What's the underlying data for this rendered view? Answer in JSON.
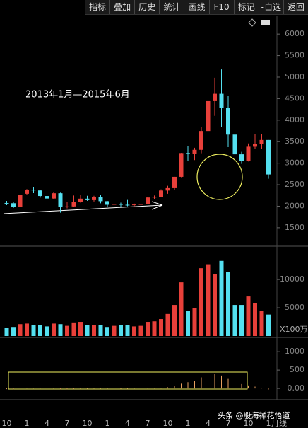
{
  "toolbar": {
    "buttons": [
      "指标",
      "叠加",
      "历史",
      "统计",
      "画线",
      "F10",
      "标记",
      "-自选",
      "返回"
    ]
  },
  "watermark": "头条 @股海禅花悟道",
  "period": "月线",
  "chart_data": [
    {
      "type": "candlestick",
      "annotation": "2013年1月—2015年6月",
      "categories": [
        "10",
        null,
        null,
        "1",
        null,
        null,
        "4",
        null,
        null,
        "7",
        null,
        null,
        "10",
        null,
        null,
        "1",
        null,
        null,
        "4",
        null,
        null,
        "7",
        null,
        null,
        "10",
        null,
        null,
        "1",
        null,
        null,
        "4",
        null,
        null,
        "7",
        null,
        null,
        "10",
        null,
        null,
        "1"
      ],
      "open": [
        2074,
        2069,
        1975,
        2289,
        2383,
        2366,
        2237,
        2178,
        2301,
        1979,
        1994,
        2098,
        2175,
        2141,
        2220,
        2116,
        2033,
        2056,
        2033,
        2026,
        2039,
        2048,
        2202,
        2217,
        2364,
        2420,
        2683,
        3235,
        3210,
        3310,
        3748,
        4442,
        4612,
        4277,
        3664,
        3206,
        3053,
        3382,
        3445,
        3539
      ],
      "high": [
        2122,
        2092,
        2276,
        2398,
        2444,
        2380,
        2268,
        2334,
        2314,
        2093,
        2248,
        2270,
        2242,
        2243,
        2260,
        2121,
        2177,
        2082,
        2146,
        2061,
        2087,
        2218,
        2248,
        2391,
        2475,
        2683,
        3239,
        3406,
        3358,
        3835,
        4572,
        4986,
        5178,
        4572,
        4006,
        3263,
        3459,
        3679,
        3684,
        3539
      ],
      "low": [
        2025,
        1959,
        1949,
        2264,
        2303,
        2198,
        2161,
        2162,
        1849,
        1951,
        1987,
        2080,
        2124,
        2109,
        2068,
        1984,
        2030,
        1974,
        1997,
        1992,
        2010,
        2042,
        2171,
        2207,
        2290,
        2386,
        2674,
        3049,
        3072,
        3230,
        3745,
        4099,
        3847,
        3373,
        2850,
        2983,
        3039,
        3322,
        3327,
        2638
      ],
      "close": [
        2069,
        1980,
        2269,
        2385,
        2366,
        2237,
        2178,
        2301,
        1979,
        1994,
        2098,
        2175,
        2141,
        2220,
        2116,
        2033,
        2056,
        2033,
        2026,
        2039,
        2048,
        2202,
        2217,
        2364,
        2420,
        2683,
        3235,
        3210,
        3310,
        3748,
        4442,
        4612,
        4277,
        3664,
        3206,
        3053,
        3382,
        3445,
        3539,
        2738
      ],
      "up_color": "#e8403a",
      "down_color": "#54e0f0",
      "ylim": [
        1120,
        6430
      ],
      "yticks": [
        1500,
        2000,
        2500,
        3000,
        3500,
        4000,
        4500,
        5000,
        5500,
        6000
      ]
    },
    {
      "type": "bar",
      "unit_label": "X100万",
      "values": [
        1500,
        1600,
        2100,
        2200,
        2000,
        1900,
        1700,
        2200,
        2100,
        1800,
        2400,
        2500,
        2000,
        1900,
        1900,
        1600,
        1800,
        2000,
        1900,
        1700,
        1800,
        2500,
        2600,
        3000,
        3900,
        5500,
        9500,
        4500,
        5000,
        12000,
        12700,
        11000,
        13300,
        11300,
        5500,
        5500,
        7000,
        5800,
        4500,
        3800
      ],
      "ylim": [
        0,
        15400
      ],
      "yticks": [
        5000,
        10000
      ]
    },
    {
      "type": "bar",
      "values": [
        -20,
        -25,
        -10,
        5,
        10,
        5,
        -5,
        -5,
        -20,
        -20,
        -15,
        -10,
        -10,
        -5,
        -5,
        -10,
        -10,
        -10,
        -10,
        -5,
        -5,
        5,
        10,
        20,
        30,
        60,
        130,
        170,
        210,
        300,
        380,
        400,
        350,
        260,
        180,
        120,
        80,
        50,
        20,
        -30
      ],
      "color": "#e8a060",
      "ylim": [
        -210,
        1330
      ],
      "yticks": [
        {
          "value": 0,
          "label": "0.00"
        },
        500,
        1000
      ]
    }
  ]
}
